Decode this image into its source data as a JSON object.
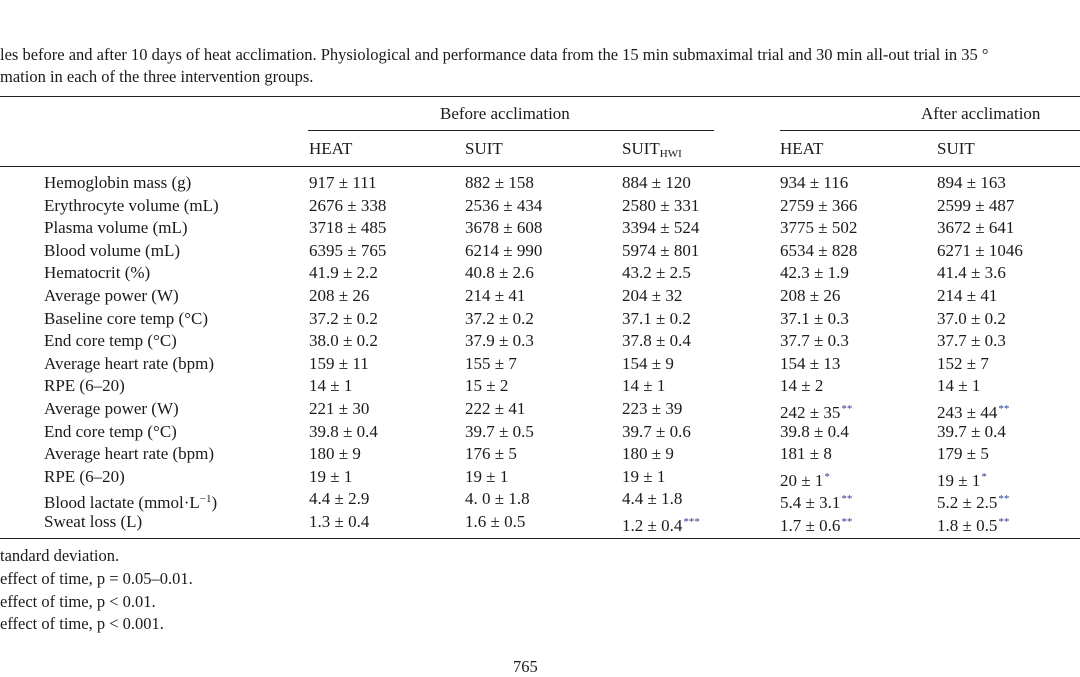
{
  "caption": [
    "les before and after 10 days of heat acclimation. Physiological and performance data from the 15 min submaximal trial and 30 min all-out trial in 35 °",
    "mation in each of the three intervention groups."
  ],
  "table": {
    "group_headers": [
      "Before acclimation",
      "After acclimation"
    ],
    "columns": [
      "HEAT",
      "SUIT",
      "SUIT",
      "HEAT",
      "SUIT"
    ],
    "column_subscript": "HWI",
    "rows": [
      {
        "label": "Hemoglobin mass (g)",
        "cells": [
          {
            "v": "917 ± 111"
          },
          {
            "v": "882 ± 158"
          },
          {
            "v": "884 ± 120"
          },
          {
            "v": "934 ± 116"
          },
          {
            "v": "894 ± 163"
          }
        ]
      },
      {
        "label": "Erythrocyte volume (mL)",
        "cells": [
          {
            "v": "2676 ± 338"
          },
          {
            "v": "2536 ± 434"
          },
          {
            "v": "2580 ± 331"
          },
          {
            "v": "2759 ± 366"
          },
          {
            "v": "2599 ± 487"
          }
        ]
      },
      {
        "label": "Plasma volume (mL)",
        "cells": [
          {
            "v": "3718 ± 485"
          },
          {
            "v": "3678 ± 608"
          },
          {
            "v": "3394 ± 524"
          },
          {
            "v": "3775 ± 502"
          },
          {
            "v": "3672 ± 641"
          }
        ]
      },
      {
        "label": "Blood volume (mL)",
        "cells": [
          {
            "v": "6395 ± 765"
          },
          {
            "v": "6214 ± 990"
          },
          {
            "v": "5974 ± 801"
          },
          {
            "v": "6534 ± 828"
          },
          {
            "v": "6271 ± 1046"
          }
        ]
      },
      {
        "label": "Hematocrit (%)",
        "cells": [
          {
            "v": "41.9 ± 2.2"
          },
          {
            "v": "40.8 ± 2.6"
          },
          {
            "v": "43.2 ± 2.5"
          },
          {
            "v": "42.3 ± 1.9"
          },
          {
            "v": "41.4 ± 3.6"
          }
        ]
      },
      {
        "label": "Average power (W)",
        "cells": [
          {
            "v": "208 ± 26"
          },
          {
            "v": "214 ± 41"
          },
          {
            "v": "204 ± 32"
          },
          {
            "v": "208 ± 26"
          },
          {
            "v": "214 ± 41"
          }
        ]
      },
      {
        "label": "Baseline core temp (°C)",
        "cells": [
          {
            "v": "37.2 ± 0.2"
          },
          {
            "v": "37.2 ± 0.2"
          },
          {
            "v": "37.1 ± 0.2"
          },
          {
            "v": "37.1 ± 0.3"
          },
          {
            "v": "37.0 ± 0.2"
          }
        ]
      },
      {
        "label": "End core temp (°C)",
        "cells": [
          {
            "v": "38.0 ± 0.2"
          },
          {
            "v": "37.9 ± 0.3"
          },
          {
            "v": "37.8 ± 0.4"
          },
          {
            "v": "37.7 ± 0.3"
          },
          {
            "v": "37.7 ± 0.3"
          }
        ]
      },
      {
        "label": "Average heart rate (bpm)",
        "cells": [
          {
            "v": "159 ± 11"
          },
          {
            "v": "155 ± 7"
          },
          {
            "v": "154 ± 9"
          },
          {
            "v": "154 ± 13"
          },
          {
            "v": "152 ± 7"
          }
        ]
      },
      {
        "label": "RPE (6–20)",
        "cells": [
          {
            "v": "14 ± 1"
          },
          {
            "v": "15 ± 2"
          },
          {
            "v": "14 ± 1"
          },
          {
            "v": "14 ± 2"
          },
          {
            "v": "14 ± 1"
          }
        ]
      },
      {
        "label": "Average power (W)",
        "cells": [
          {
            "v": "221 ± 30"
          },
          {
            "v": "222 ± 41"
          },
          {
            "v": "223 ± 39"
          },
          {
            "v": "242 ± 35",
            "sup": "**"
          },
          {
            "v": "243 ± 44",
            "sup": "**"
          }
        ]
      },
      {
        "label": "End core temp (°C)",
        "cells": [
          {
            "v": "39.8 ± 0.4"
          },
          {
            "v": "39.7 ± 0.5"
          },
          {
            "v": "39.7 ± 0.6"
          },
          {
            "v": "39.8 ± 0.4"
          },
          {
            "v": "39.7 ± 0.4"
          }
        ]
      },
      {
        "label": "Average heart rate (bpm)",
        "cells": [
          {
            "v": "180 ± 9"
          },
          {
            "v": "176 ± 5"
          },
          {
            "v": "180 ± 9"
          },
          {
            "v": "181 ± 8"
          },
          {
            "v": "179 ± 5"
          }
        ]
      },
      {
        "label": "RPE (6–20)",
        "cells": [
          {
            "v": "19 ± 1"
          },
          {
            "v": "19 ± 1"
          },
          {
            "v": "19 ± 1"
          },
          {
            "v": "20 ± 1",
            "sup": "*"
          },
          {
            "v": "19 ± 1",
            "sup": "*"
          }
        ]
      },
      {
        "label": "Blood lactate (mmol·L",
        "label_sup": "−1",
        "label_tail": ")",
        "cells": [
          {
            "v": "4.4 ± 2.9"
          },
          {
            "v": "4. 0 ± 1.8"
          },
          {
            "v": "4.4 ± 1.8"
          },
          {
            "v": "5.4 ± 3.1",
            "sup": "**"
          },
          {
            "v": "5.2 ± 2.5",
            "sup": "**"
          }
        ]
      },
      {
        "label": "Sweat loss (L)",
        "cells": [
          {
            "v": "1.3 ± 0.4"
          },
          {
            "v": "1.6 ± 0.5"
          },
          {
            "v": "1.2 ± 0.4",
            "sup": "***"
          },
          {
            "v": "1.7 ± 0.6",
            "sup": "**"
          },
          {
            "v": "1.8 ± 0.5",
            "sup": "**"
          }
        ]
      }
    ]
  },
  "footnotes": [
    "tandard deviation.",
    "effect of time, p = 0.05–0.01.",
    "effect of time, p < 0.01.",
    "effect of time, p < 0.001."
  ],
  "page_number": "765"
}
